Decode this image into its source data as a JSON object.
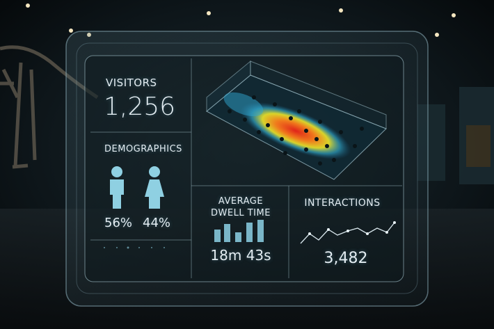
{
  "visitors": {
    "label": "VISITORS",
    "value": "1,256"
  },
  "demographics": {
    "label": "DEMOGRAPHICS",
    "male": "56%",
    "female": "44%"
  },
  "dwell_time": {
    "label": "AVERAGE DWELL TIME",
    "value": "18m 43s"
  },
  "interactions": {
    "label": "INTERACTIONS",
    "value": "3,482"
  }
}
